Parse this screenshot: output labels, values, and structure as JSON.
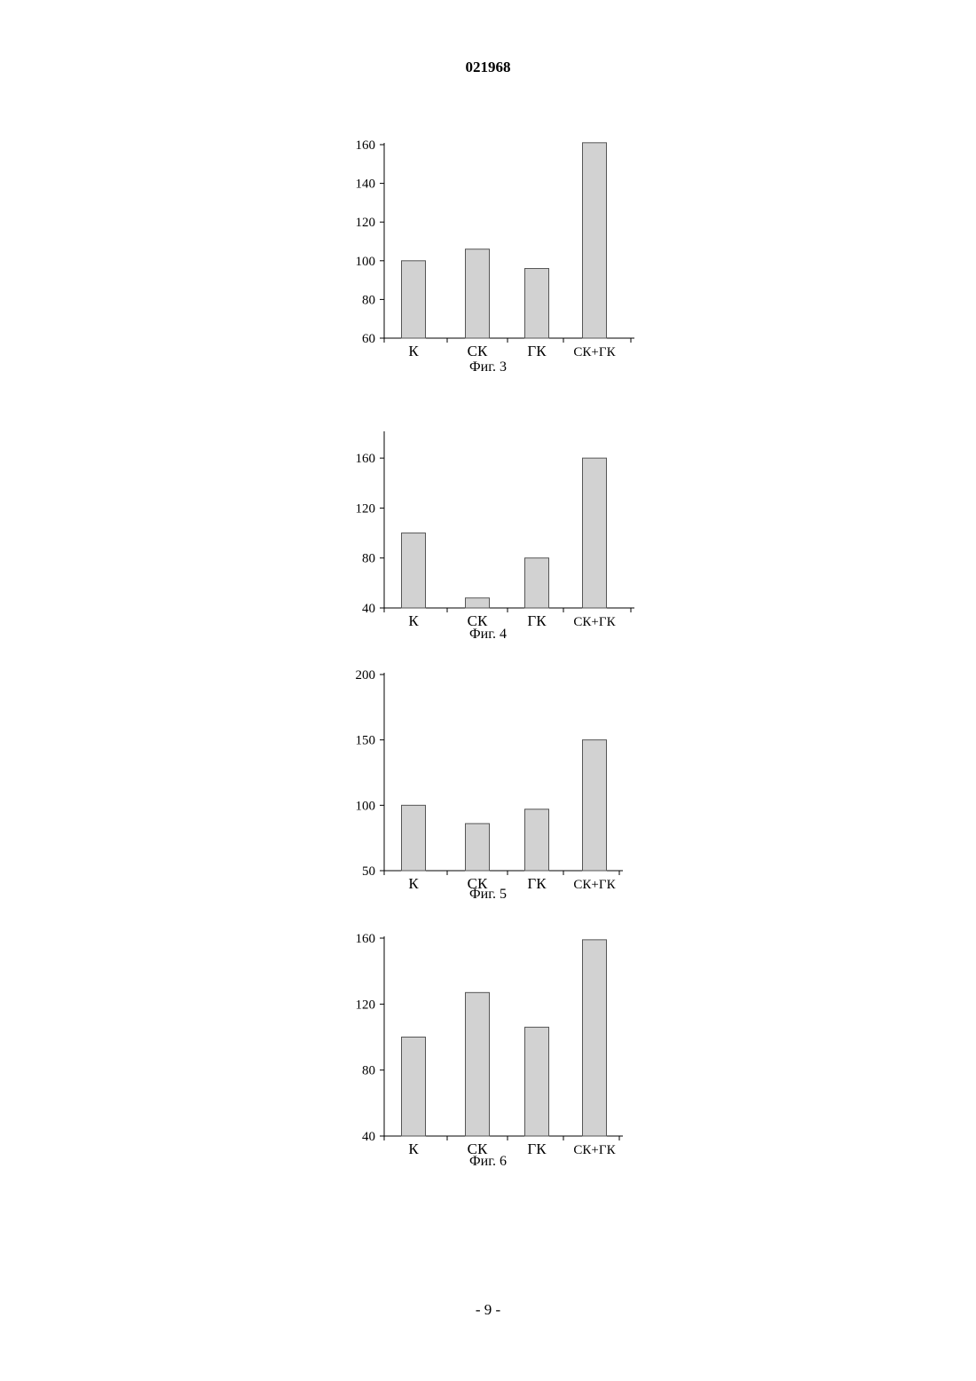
{
  "header": {
    "doc_number": "021968"
  },
  "footer": {
    "page_number": "- 9 -"
  },
  "colors": {
    "bar_fill": "#d2d2d2",
    "bar_stroke": "#555555",
    "axis": "#000000"
  },
  "chart_data": [
    {
      "type": "bar",
      "caption": "Фиг. 3",
      "categories": [
        "К",
        "СК",
        "ГК",
        "СК+ГК"
      ],
      "values": [
        100,
        106,
        96,
        161
      ],
      "ylim": [
        60,
        160
      ],
      "yticks": [
        60,
        80,
        100,
        120,
        140,
        160
      ],
      "xlabel": "",
      "ylabel": "",
      "grid": false
    },
    {
      "type": "bar",
      "caption": "Фиг. 4",
      "categories": [
        "К",
        "СК",
        "ГК",
        "СК+ГК"
      ],
      "values": [
        100,
        48,
        80,
        160
      ],
      "ylim": [
        40,
        180
      ],
      "yticks": [
        40,
        80,
        120,
        160
      ],
      "xlabel": "",
      "ylabel": "",
      "grid": false
    },
    {
      "type": "bar",
      "caption": "Фиг. 5",
      "categories": [
        "К",
        "СК",
        "ГК",
        "СК+ГК"
      ],
      "values": [
        100,
        86,
        97,
        150
      ],
      "ylim": [
        50,
        200
      ],
      "yticks": [
        50,
        100,
        150,
        200
      ],
      "xlabel": "",
      "ylabel": "",
      "grid": false
    },
    {
      "type": "bar",
      "caption": "Фиг. 6",
      "categories": [
        "К",
        "СК",
        "ГК",
        "СК+ГК"
      ],
      "values": [
        100,
        127,
        106,
        159
      ],
      "ylim": [
        40,
        160
      ],
      "yticks": [
        40,
        80,
        120,
        160
      ],
      "xlabel": "",
      "ylabel": "",
      "grid": false
    }
  ]
}
